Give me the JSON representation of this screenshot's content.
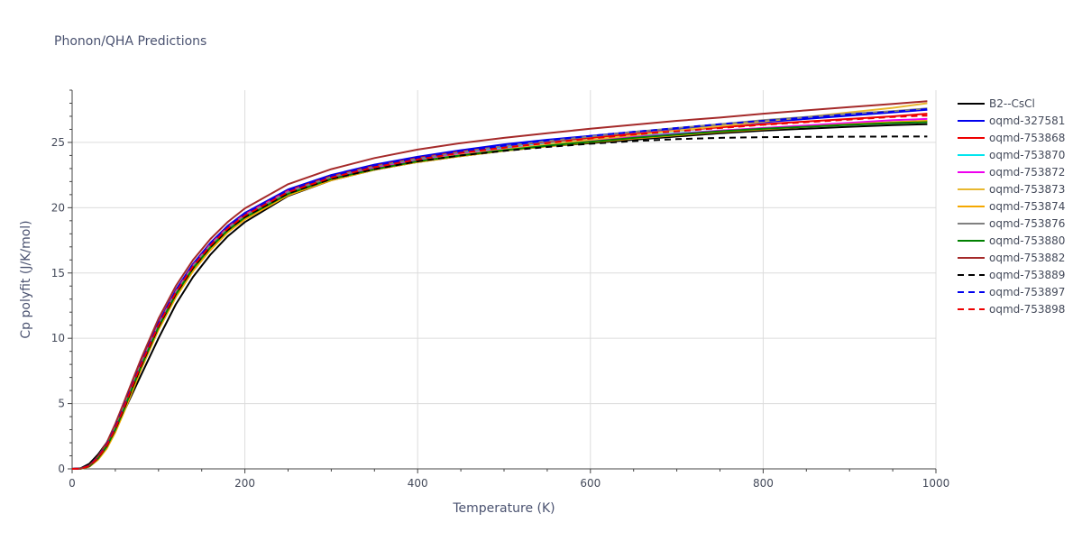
{
  "chart_data": {
    "type": "line",
    "title": "Phonon/QHA Predictions",
    "xlabel": "Temperature (K)",
    "ylabel": "Cp polyfit (J/K/mol)",
    "xlim": [
      0,
      1000
    ],
    "ylim": [
      0,
      29
    ],
    "xticks": [
      0,
      200,
      400,
      600,
      800,
      1000
    ],
    "yticks": [
      0,
      5,
      10,
      15,
      20,
      25
    ],
    "grid": true,
    "legend_position": "right",
    "x": [
      0,
      10,
      20,
      30,
      40,
      50,
      60,
      70,
      80,
      100,
      120,
      140,
      160,
      180,
      200,
      250,
      300,
      350,
      400,
      450,
      500,
      550,
      600,
      650,
      700,
      750,
      800,
      850,
      900,
      950,
      990
    ],
    "series": [
      {
        "name": "B2--CsCl",
        "color": "#000000",
        "dash": "solid",
        "values": [
          0,
          0.05,
          0.4,
          1.1,
          2.0,
          3.1,
          4.4,
          5.8,
          7.2,
          10.0,
          12.6,
          14.7,
          16.4,
          17.8,
          18.9,
          20.9,
          22.1,
          22.9,
          23.5,
          23.95,
          24.35,
          24.7,
          24.95,
          25.2,
          25.45,
          25.7,
          25.9,
          26.05,
          26.2,
          26.32,
          26.4
        ]
      },
      {
        "name": "oqmd-327581",
        "color": "#0000ee",
        "dash": "solid",
        "values": [
          0,
          0.02,
          0.25,
          0.9,
          1.9,
          3.3,
          4.9,
          6.6,
          8.2,
          11.2,
          13.7,
          15.7,
          17.3,
          18.6,
          19.6,
          21.4,
          22.5,
          23.3,
          23.9,
          24.4,
          24.85,
          25.2,
          25.5,
          25.8,
          26.05,
          26.3,
          26.55,
          26.8,
          27.05,
          27.3,
          27.5
        ]
      },
      {
        "name": "oqmd-753868",
        "color": "#ee0000",
        "dash": "solid",
        "values": [
          0,
          0.02,
          0.24,
          0.88,
          1.85,
          3.2,
          4.8,
          6.5,
          8.1,
          11.1,
          13.6,
          15.6,
          17.2,
          18.5,
          19.5,
          21.3,
          22.4,
          23.2,
          23.8,
          24.3,
          24.7,
          25.05,
          25.35,
          25.65,
          25.9,
          26.15,
          26.4,
          26.6,
          26.8,
          27.0,
          27.2
        ]
      },
      {
        "name": "oqmd-753870",
        "color": "#00e5ee",
        "dash": "solid",
        "values": [
          0,
          0.02,
          0.23,
          0.85,
          1.8,
          3.1,
          4.7,
          6.4,
          8.0,
          11.0,
          13.5,
          15.5,
          17.1,
          18.4,
          19.4,
          21.2,
          22.3,
          23.1,
          23.7,
          24.15,
          24.55,
          24.9,
          25.2,
          25.45,
          25.7,
          25.9,
          26.1,
          26.25,
          26.4,
          26.55,
          26.65
        ]
      },
      {
        "name": "oqmd-753872",
        "color": "#ee00ee",
        "dash": "solid",
        "values": [
          0,
          0.02,
          0.23,
          0.86,
          1.82,
          3.15,
          4.75,
          6.45,
          8.05,
          11.05,
          13.55,
          15.55,
          17.15,
          18.45,
          19.45,
          21.25,
          22.3,
          23.05,
          23.6,
          24.1,
          24.5,
          24.85,
          25.15,
          25.4,
          25.65,
          25.9,
          26.1,
          26.3,
          26.5,
          26.7,
          26.8
        ]
      },
      {
        "name": "oqmd-753873",
        "color": "#e8b830",
        "dash": "solid",
        "values": [
          0,
          0.01,
          0.18,
          0.72,
          1.6,
          2.85,
          4.4,
          6.05,
          7.7,
          10.7,
          13.2,
          15.2,
          16.8,
          18.15,
          19.15,
          21.0,
          22.15,
          22.95,
          23.55,
          24.05,
          24.45,
          24.85,
          25.2,
          25.55,
          25.9,
          26.25,
          26.6,
          26.95,
          27.3,
          27.65,
          28.0
        ]
      },
      {
        "name": "oqmd-753874",
        "color": "#f5a800",
        "dash": "solid",
        "values": [
          0,
          0.01,
          0.17,
          0.7,
          1.55,
          2.8,
          4.35,
          6.0,
          7.65,
          10.65,
          13.15,
          15.15,
          16.75,
          18.1,
          19.1,
          20.95,
          22.1,
          22.9,
          23.5,
          23.95,
          24.35,
          24.7,
          25.0,
          25.3,
          25.55,
          25.8,
          26.0,
          26.2,
          26.4,
          26.55,
          26.65
        ]
      },
      {
        "name": "oqmd-753876",
        "color": "#808080",
        "dash": "solid",
        "values": [
          0,
          0.02,
          0.22,
          0.84,
          1.78,
          3.1,
          4.7,
          6.4,
          8.0,
          11.0,
          13.5,
          15.5,
          17.1,
          18.4,
          19.4,
          21.2,
          22.35,
          23.15,
          23.75,
          24.25,
          24.7,
          25.1,
          25.45,
          25.8,
          26.1,
          26.4,
          26.7,
          26.95,
          27.2,
          27.4,
          27.6
        ]
      },
      {
        "name": "oqmd-753880",
        "color": "#008000",
        "dash": "solid",
        "values": [
          0,
          0.02,
          0.2,
          0.8,
          1.7,
          3.0,
          4.55,
          6.25,
          7.85,
          10.85,
          13.35,
          15.35,
          16.95,
          18.25,
          19.25,
          21.05,
          22.2,
          22.95,
          23.55,
          24.0,
          24.4,
          24.75,
          25.05,
          25.35,
          25.6,
          25.85,
          26.05,
          26.2,
          26.35,
          26.48,
          26.55
        ]
      },
      {
        "name": "oqmd-753882",
        "color": "#a52a2a",
        "dash": "solid",
        "values": [
          0,
          0.02,
          0.26,
          0.95,
          2.0,
          3.45,
          5.1,
          6.8,
          8.45,
          11.5,
          14.0,
          16.0,
          17.6,
          18.9,
          19.95,
          21.8,
          22.95,
          23.8,
          24.45,
          24.95,
          25.35,
          25.7,
          26.05,
          26.35,
          26.65,
          26.9,
          27.2,
          27.45,
          27.7,
          27.95,
          28.15
        ]
      },
      {
        "name": "oqmd-753889",
        "color": "#000000",
        "dash": "dashed",
        "values": [
          0,
          0.02,
          0.22,
          0.82,
          1.75,
          3.05,
          4.6,
          6.3,
          7.9,
          10.9,
          13.4,
          15.4,
          17.0,
          18.3,
          19.3,
          21.1,
          22.2,
          22.95,
          23.55,
          24.0,
          24.35,
          24.65,
          24.9,
          25.1,
          25.25,
          25.35,
          25.4,
          25.42,
          25.44,
          25.45,
          25.45
        ]
      },
      {
        "name": "oqmd-753897",
        "color": "#0000ee",
        "dash": "dashed",
        "values": [
          0,
          0.02,
          0.24,
          0.88,
          1.85,
          3.2,
          4.8,
          6.5,
          8.1,
          11.1,
          13.6,
          15.6,
          17.2,
          18.5,
          19.5,
          21.3,
          22.4,
          23.2,
          23.8,
          24.3,
          24.75,
          25.15,
          25.5,
          25.8,
          26.1,
          26.4,
          26.65,
          26.9,
          27.15,
          27.35,
          27.55
        ]
      },
      {
        "name": "oqmd-753898",
        "color": "#ee0000",
        "dash": "dashed",
        "values": [
          0,
          0.02,
          0.22,
          0.84,
          1.78,
          3.1,
          4.7,
          6.4,
          8.0,
          11.0,
          13.5,
          15.5,
          17.1,
          18.4,
          19.4,
          21.2,
          22.3,
          23.1,
          23.7,
          24.2,
          24.6,
          24.95,
          25.3,
          25.6,
          25.85,
          26.1,
          26.35,
          26.55,
          26.75,
          26.95,
          27.05
        ]
      }
    ]
  }
}
